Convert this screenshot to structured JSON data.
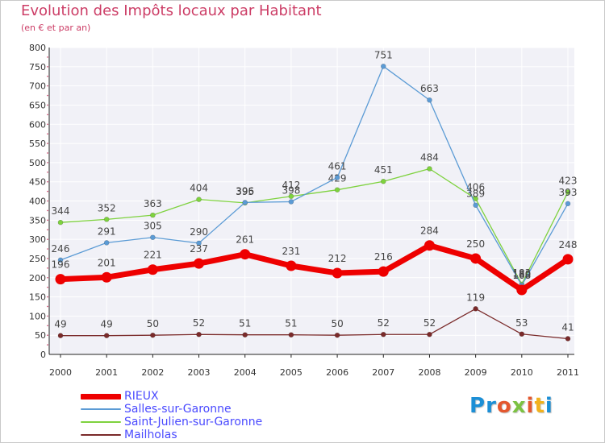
{
  "title": "Evolution des Impôts locaux par Habitant",
  "subtitle": "(en € et par an)",
  "logo": {
    "text": "Proxiti",
    "colors": [
      "#1c8fd6",
      "#1c8fd6",
      "#e4572e",
      "#7cc242",
      "#e4572e",
      "#f2b21c",
      "#1c8fd6"
    ]
  },
  "chart_data": {
    "type": "line",
    "x": [
      "2000",
      "2001",
      "2002",
      "2003",
      "2004",
      "2005",
      "2006",
      "2007",
      "2008",
      "2009",
      "2010",
      "2011"
    ],
    "ylim": [
      0,
      800
    ],
    "yticks": [
      0,
      50,
      100,
      150,
      200,
      250,
      300,
      350,
      400,
      450,
      500,
      550,
      600,
      650,
      700,
      750,
      800
    ],
    "grid": true,
    "legend_position": "bottom-left",
    "series": [
      {
        "name": "Saint-Julien-sur-Garonne",
        "color": "#7ed23e",
        "values": [
          344,
          352,
          363,
          404,
          395,
          412,
          429,
          451,
          484,
          406,
          183,
          423
        ],
        "labels": [
          "344",
          "352",
          "363",
          "404",
          "395",
          "412",
          "429",
          "451",
          "484",
          "406",
          "183",
          "423"
        ]
      },
      {
        "name": "Salles-sur-Garonne",
        "color": "#5b9bd5",
        "values": [
          246,
          291,
          305,
          290,
          396,
          398,
          461,
          751,
          663,
          389,
          180,
          393
        ],
        "labels": [
          "246",
          "291",
          "305",
          "290",
          "396",
          "398",
          "461",
          "751",
          "663",
          "389",
          "180",
          "393"
        ]
      },
      {
        "name": "Mailholas",
        "color": "#7a2a2a",
        "values": [
          49,
          49,
          50,
          52,
          51,
          51,
          50,
          52,
          52,
          119,
          53,
          41
        ],
        "labels": [
          "49",
          "49",
          "50",
          "52",
          "51",
          "51",
          "50",
          "52",
          "52",
          "119",
          "53",
          "41"
        ]
      },
      {
        "name": "RIEUX",
        "color": "#ee0000",
        "values": [
          196,
          201,
          221,
          237,
          261,
          231,
          212,
          216,
          284,
          250,
          168,
          248
        ],
        "labels": [
          "196",
          "201",
          "221",
          "237",
          "261",
          "231",
          "212",
          "216",
          "284",
          "250",
          "168",
          "248"
        ]
      }
    ],
    "legend_order": [
      "RIEUX",
      "Salles-sur-Garonne",
      "Saint-Julien-sur-Garonne",
      "Mailholas"
    ]
  }
}
